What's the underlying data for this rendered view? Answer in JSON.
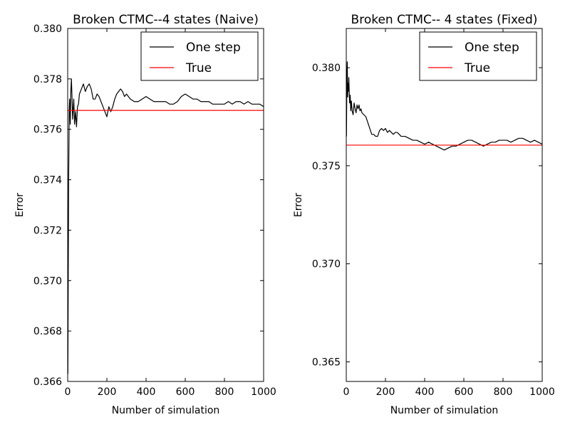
{
  "chart_data": [
    {
      "type": "line",
      "title": "Broken CTMC--4 states (Naive)",
      "xlabel": "Number of simulation",
      "ylabel": "Error",
      "xlim": [
        0,
        1000
      ],
      "ylim": [
        0.366,
        0.38
      ],
      "xticks": [
        0,
        200,
        400,
        600,
        800,
        1000
      ],
      "yticks": [
        0.366,
        0.368,
        0.37,
        0.372,
        0.374,
        0.376,
        0.378,
        0.38
      ],
      "ytick_labels": [
        "0.366",
        "0.368",
        "0.370",
        "0.372",
        "0.374",
        "0.376",
        "0.378",
        "0.380"
      ],
      "legend_position": "top-right",
      "grid": false,
      "series": [
        {
          "name": "One step",
          "color": "#000000",
          "x": [
            1,
            3,
            5,
            8,
            10,
            13,
            16,
            19,
            22,
            25,
            28,
            31,
            35,
            40,
            45,
            50,
            55,
            60,
            70,
            80,
            90,
            100,
            110,
            120,
            130,
            140,
            150,
            160,
            170,
            180,
            190,
            200,
            210,
            220,
            230,
            240,
            250,
            260,
            270,
            280,
            290,
            300,
            320,
            340,
            360,
            380,
            400,
            420,
            440,
            460,
            480,
            500,
            520,
            540,
            560,
            580,
            600,
            620,
            640,
            660,
            680,
            700,
            720,
            740,
            760,
            780,
            800,
            820,
            840,
            860,
            880,
            900,
            920,
            940,
            960,
            980,
            1000
          ],
          "y": [
            0.3663,
            0.3705,
            0.3742,
            0.3768,
            0.3772,
            0.3762,
            0.3775,
            0.378,
            0.3773,
            0.3764,
            0.3768,
            0.3772,
            0.3762,
            0.3767,
            0.3761,
            0.3769,
            0.377,
            0.3774,
            0.3776,
            0.3778,
            0.3775,
            0.3777,
            0.3778,
            0.3776,
            0.3772,
            0.3772,
            0.3774,
            0.3773,
            0.3771,
            0.3769,
            0.3767,
            0.3765,
            0.3769,
            0.3767,
            0.3769,
            0.3772,
            0.3774,
            0.3775,
            0.3776,
            0.3775,
            0.3773,
            0.3774,
            0.3772,
            0.3771,
            0.3771,
            0.3772,
            0.3773,
            0.3772,
            0.3771,
            0.3771,
            0.3771,
            0.3771,
            0.377,
            0.377,
            0.3771,
            0.3773,
            0.3774,
            0.3773,
            0.3772,
            0.3772,
            0.3771,
            0.3771,
            0.3771,
            0.377,
            0.377,
            0.377,
            0.377,
            0.3771,
            0.377,
            0.3771,
            0.3771,
            0.377,
            0.3771,
            0.377,
            0.377,
            0.377,
            0.3769
          ]
        },
        {
          "name": "True",
          "color": "#ff0000",
          "x": [
            0,
            1000
          ],
          "y": [
            0.37675,
            0.37675
          ]
        }
      ]
    },
    {
      "type": "line",
      "title": "Broken CTMC-- 4 states (Fixed)",
      "xlabel": "Number of simulation",
      "ylabel": "Error",
      "xlim": [
        0,
        1000
      ],
      "ylim": [
        0.364,
        0.382
      ],
      "xticks": [
        0,
        200,
        400,
        600,
        800,
        1000
      ],
      "yticks": [
        0.365,
        0.37,
        0.375,
        0.38
      ],
      "ytick_labels": [
        "0.365",
        "0.370",
        "0.375",
        "0.380"
      ],
      "legend_position": "top-right",
      "grid": false,
      "series": [
        {
          "name": "One step",
          "color": "#000000",
          "x": [
            1,
            3,
            5,
            7,
            9,
            11,
            13,
            15,
            17,
            20,
            23,
            26,
            30,
            35,
            40,
            45,
            50,
            55,
            60,
            65,
            70,
            75,
            80,
            90,
            100,
            110,
            120,
            130,
            140,
            150,
            160,
            170,
            180,
            190,
            200,
            210,
            220,
            230,
            240,
            250,
            260,
            280,
            300,
            320,
            340,
            360,
            380,
            400,
            420,
            440,
            460,
            480,
            500,
            520,
            540,
            560,
            580,
            600,
            620,
            640,
            660,
            680,
            700,
            720,
            740,
            760,
            780,
            800,
            820,
            840,
            860,
            880,
            900,
            920,
            940,
            960,
            980,
            1000
          ],
          "y": [
            0.3765,
            0.3795,
            0.3803,
            0.3785,
            0.3792,
            0.3788,
            0.3795,
            0.3788,
            0.3782,
            0.3786,
            0.3778,
            0.3783,
            0.3778,
            0.3776,
            0.3782,
            0.3779,
            0.3777,
            0.3781,
            0.3779,
            0.3781,
            0.3778,
            0.3779,
            0.3777,
            0.3776,
            0.3775,
            0.3772,
            0.3769,
            0.3766,
            0.3766,
            0.3765,
            0.3765,
            0.3768,
            0.3769,
            0.3768,
            0.3769,
            0.3767,
            0.3768,
            0.3767,
            0.3766,
            0.3767,
            0.3767,
            0.3765,
            0.3765,
            0.3764,
            0.3763,
            0.3763,
            0.3762,
            0.3761,
            0.3762,
            0.3761,
            0.376,
            0.3759,
            0.3758,
            0.3759,
            0.376,
            0.376,
            0.3761,
            0.3762,
            0.3763,
            0.3763,
            0.3762,
            0.3761,
            0.376,
            0.3761,
            0.3762,
            0.3762,
            0.3763,
            0.3763,
            0.3763,
            0.3762,
            0.3763,
            0.3764,
            0.3764,
            0.3763,
            0.3762,
            0.3763,
            0.3762,
            0.3761
          ]
        },
        {
          "name": "True",
          "color": "#ff0000",
          "x": [
            0,
            1000
          ],
          "y": [
            0.37605,
            0.37605
          ]
        }
      ]
    }
  ]
}
